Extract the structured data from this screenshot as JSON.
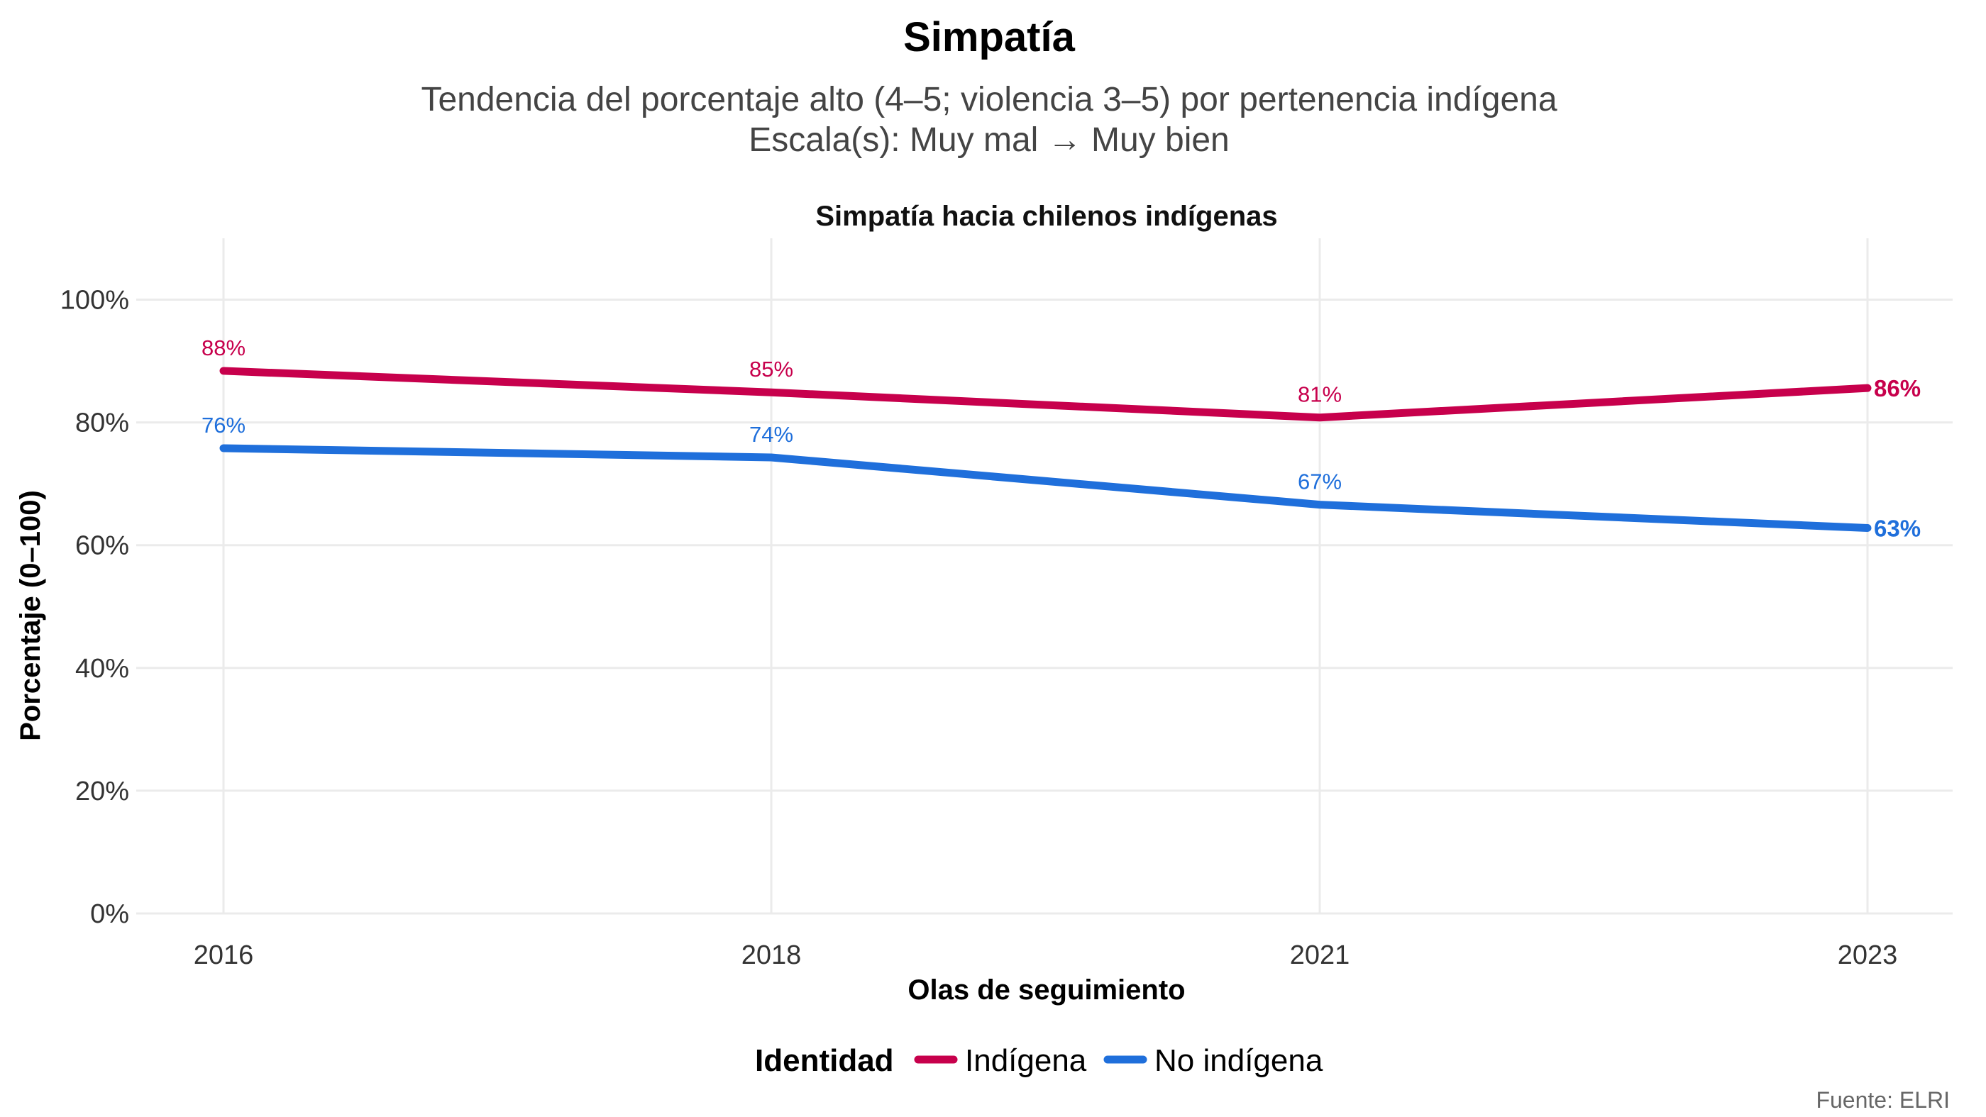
{
  "title": "Simpatía",
  "subtitle": [
    "Tendencia del porcentaje alto (4–5; violencia 3–5) por pertenencia indígena",
    "Escala(s): Muy mal → Muy bien"
  ],
  "caption": "Fuente: ELRI",
  "chart_data": {
    "type": "line",
    "title": "Simpatía hacia chilenos indígenas",
    "xlabel": "Olas de seguimiento",
    "ylabel": "Porcentaje (0–100)",
    "categories": [
      "2016",
      "2018",
      "2021",
      "2023"
    ],
    "ylim": [
      0,
      110
    ],
    "yticks": [
      0,
      20,
      40,
      60,
      80,
      100
    ],
    "ytick_labels": [
      "0%",
      "20%",
      "40%",
      "60%",
      "80%",
      "100%"
    ],
    "grid": true,
    "legend_position": "bottom",
    "legend_title": "Identidad",
    "series": [
      {
        "name": "Indígena",
        "color": "#C7004C",
        "values": [
          88.4,
          84.9,
          80.8,
          85.6
        ],
        "labels": [
          "88%",
          "85%",
          "81%",
          "86%"
        ]
      },
      {
        "name": "No indígena",
        "color": "#1F6FDB",
        "values": [
          75.8,
          74.3,
          66.6,
          62.8
        ],
        "labels": [
          "76%",
          "74%",
          "67%",
          "63%"
        ]
      }
    ]
  }
}
